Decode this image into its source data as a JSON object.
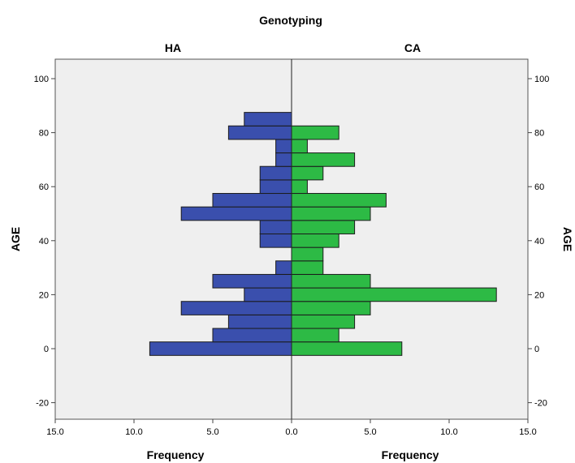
{
  "chart_data": {
    "type": "bar",
    "orientation": "horizontal-back-to-back",
    "title": "Genotyping",
    "panels": [
      {
        "name": "HA",
        "color": "#3a4fad",
        "direction": "left"
      },
      {
        "name": "CA",
        "color": "#2dba45",
        "direction": "right"
      }
    ],
    "ylabel": "AGE",
    "xlabel": "Frequency",
    "ylim": [
      -25,
      105
    ],
    "yticks": [
      "-20",
      "0",
      "20",
      "40",
      "60",
      "80",
      "100"
    ],
    "yticks_values": [
      -20,
      0,
      20,
      40,
      60,
      80,
      100
    ],
    "xlim": [
      0,
      15
    ],
    "xticks_left": [
      "15.0",
      "10.0",
      "5.0",
      "0.0"
    ],
    "xticks_right": [
      "0.0",
      "5.0",
      "10.0",
      "15.0"
    ],
    "bin_width": 5,
    "bins": [
      {
        "age": 0,
        "HA": 9,
        "CA": 7
      },
      {
        "age": 5,
        "HA": 5,
        "CA": 3
      },
      {
        "age": 10,
        "HA": 4,
        "CA": 4
      },
      {
        "age": 15,
        "HA": 7,
        "CA": 5
      },
      {
        "age": 20,
        "HA": 3,
        "CA": 13
      },
      {
        "age": 25,
        "HA": 5,
        "CA": 5
      },
      {
        "age": 30,
        "HA": 1,
        "CA": 2
      },
      {
        "age": 35,
        "HA": 0,
        "CA": 2
      },
      {
        "age": 40,
        "HA": 2,
        "CA": 3
      },
      {
        "age": 45,
        "HA": 2,
        "CA": 4
      },
      {
        "age": 50,
        "HA": 7,
        "CA": 5
      },
      {
        "age": 55,
        "HA": 5,
        "CA": 6
      },
      {
        "age": 60,
        "HA": 2,
        "CA": 1
      },
      {
        "age": 65,
        "HA": 2,
        "CA": 2
      },
      {
        "age": 70,
        "HA": 1,
        "CA": 4
      },
      {
        "age": 75,
        "HA": 1,
        "CA": 1
      },
      {
        "age": 80,
        "HA": 4,
        "CA": 3
      },
      {
        "age": 85,
        "HA": 3,
        "CA": 0
      }
    ],
    "background": "#efefef",
    "grid": false
  }
}
